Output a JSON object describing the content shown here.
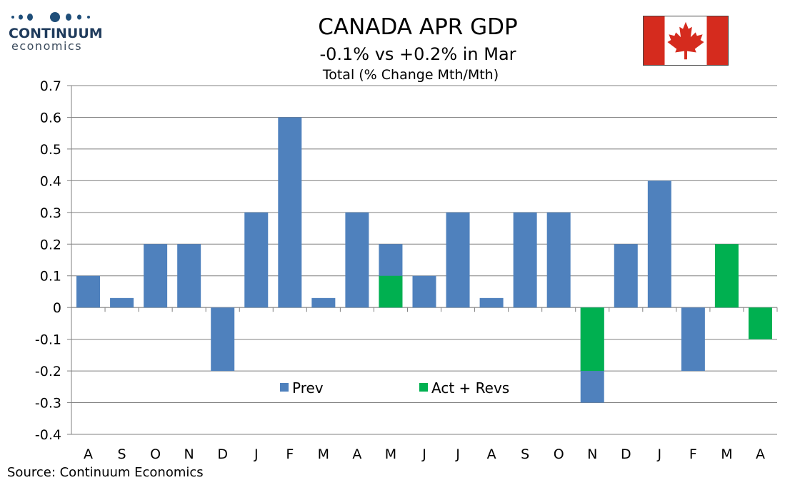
{
  "brand": {
    "name": "CONTINUUM",
    "sub": "economics"
  },
  "flag": {
    "icon": "canada-flag-icon",
    "colors": {
      "red": "#d52b1e",
      "white": "#ffffff"
    }
  },
  "chart_data": {
    "type": "bar",
    "title": "CANADA APR GDP",
    "subtitle": "-0.1% vs +0.2% in Mar",
    "ylabel": "Total (% Change Mth/Mth)",
    "categories": [
      "A",
      "S",
      "O",
      "N",
      "D",
      "J",
      "F",
      "M",
      "A",
      "M",
      "J",
      "J",
      "A",
      "S",
      "O",
      "N",
      "D",
      "J",
      "F",
      "M",
      "A"
    ],
    "series": [
      {
        "name": "Prev",
        "color": "#4f81bd",
        "values": [
          0.1,
          0.03,
          0.2,
          0.2,
          -0.2,
          0.3,
          0.6,
          0.03,
          0.3,
          0.2,
          0.1,
          0.3,
          0.03,
          0.3,
          0.3,
          -0.3,
          0.2,
          0.4,
          -0.2,
          0.1,
          null
        ]
      },
      {
        "name": "Act + Revs",
        "color": "#00b050",
        "values": [
          null,
          null,
          null,
          null,
          null,
          null,
          null,
          null,
          null,
          0.1,
          null,
          null,
          null,
          null,
          null,
          -0.2,
          null,
          null,
          null,
          0.2,
          -0.1
        ]
      }
    ],
    "ylim": [
      -0.4,
      0.7
    ],
    "yticks": [
      "0.7",
      "0.6",
      "0.5",
      "0.4",
      "0.3",
      "0.2",
      "0.1",
      "0",
      "-0.1",
      "-0.2",
      "-0.3",
      "-0.4"
    ],
    "grid": true,
    "legend": "inside-lower-center"
  },
  "source": "Source: Continuum Economics"
}
